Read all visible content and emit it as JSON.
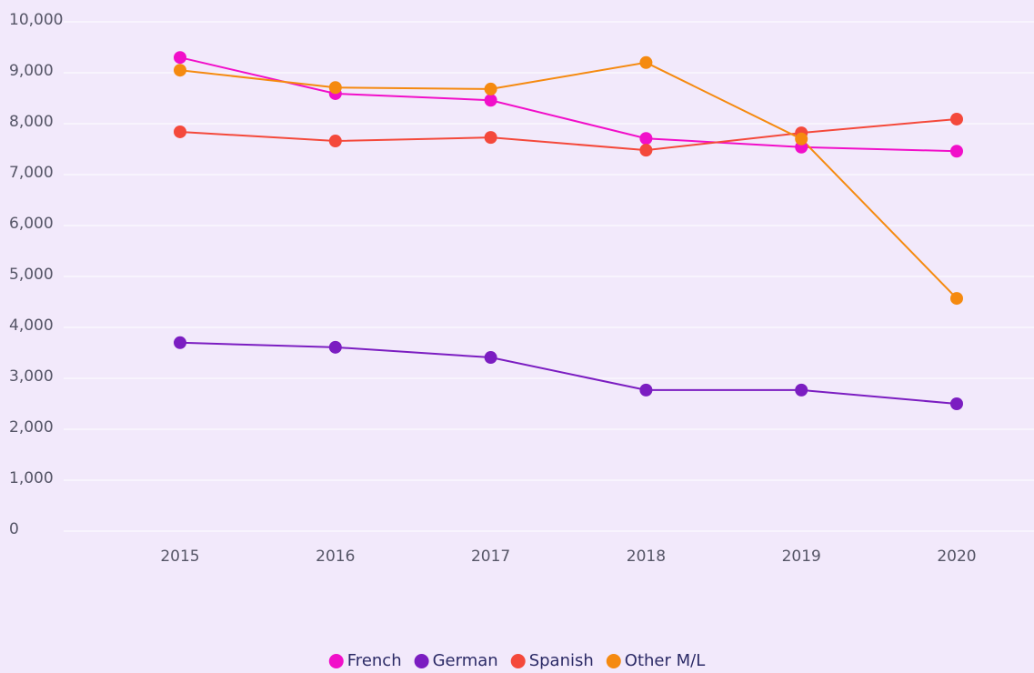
{
  "chart_data": {
    "type": "line",
    "categories": [
      "2015",
      "2016",
      "2017",
      "2018",
      "2019",
      "2020"
    ],
    "series": [
      {
        "name": "French",
        "color": "#f10fc9",
        "values": [
          9300,
          8590,
          8460,
          7710,
          7540,
          7460
        ]
      },
      {
        "name": "German",
        "color": "#7b1dc1",
        "values": [
          3700,
          3610,
          3410,
          2770,
          2770,
          2500
        ]
      },
      {
        "name": "Spanish",
        "color": "#f4493b",
        "values": [
          7840,
          7660,
          7730,
          7480,
          7820,
          8090
        ]
      },
      {
        "name": "Other M/L",
        "color": "#f58a10",
        "values": [
          9050,
          8710,
          8680,
          9200,
          7700,
          4570
        ]
      }
    ],
    "ylim": [
      0,
      10000
    ],
    "yticks": [
      0,
      {
        "value": 1000,
        "label": "1,000"
      },
      {
        "value": 2000,
        "label": "2,000"
      },
      {
        "value": 3000,
        "label": "3,000"
      },
      {
        "value": 4000,
        "label": "4,000"
      },
      {
        "value": 5000,
        "label": "5,000"
      },
      {
        "value": 6000,
        "label": "6,000"
      },
      {
        "value": 7000,
        "label": "7,000"
      },
      {
        "value": 8000,
        "label": "8,000"
      },
      {
        "value": 9000,
        "label": "9,000"
      },
      {
        "value": 10000,
        "label": "10,000"
      }
    ],
    "grid": true,
    "legend": "bottom"
  }
}
